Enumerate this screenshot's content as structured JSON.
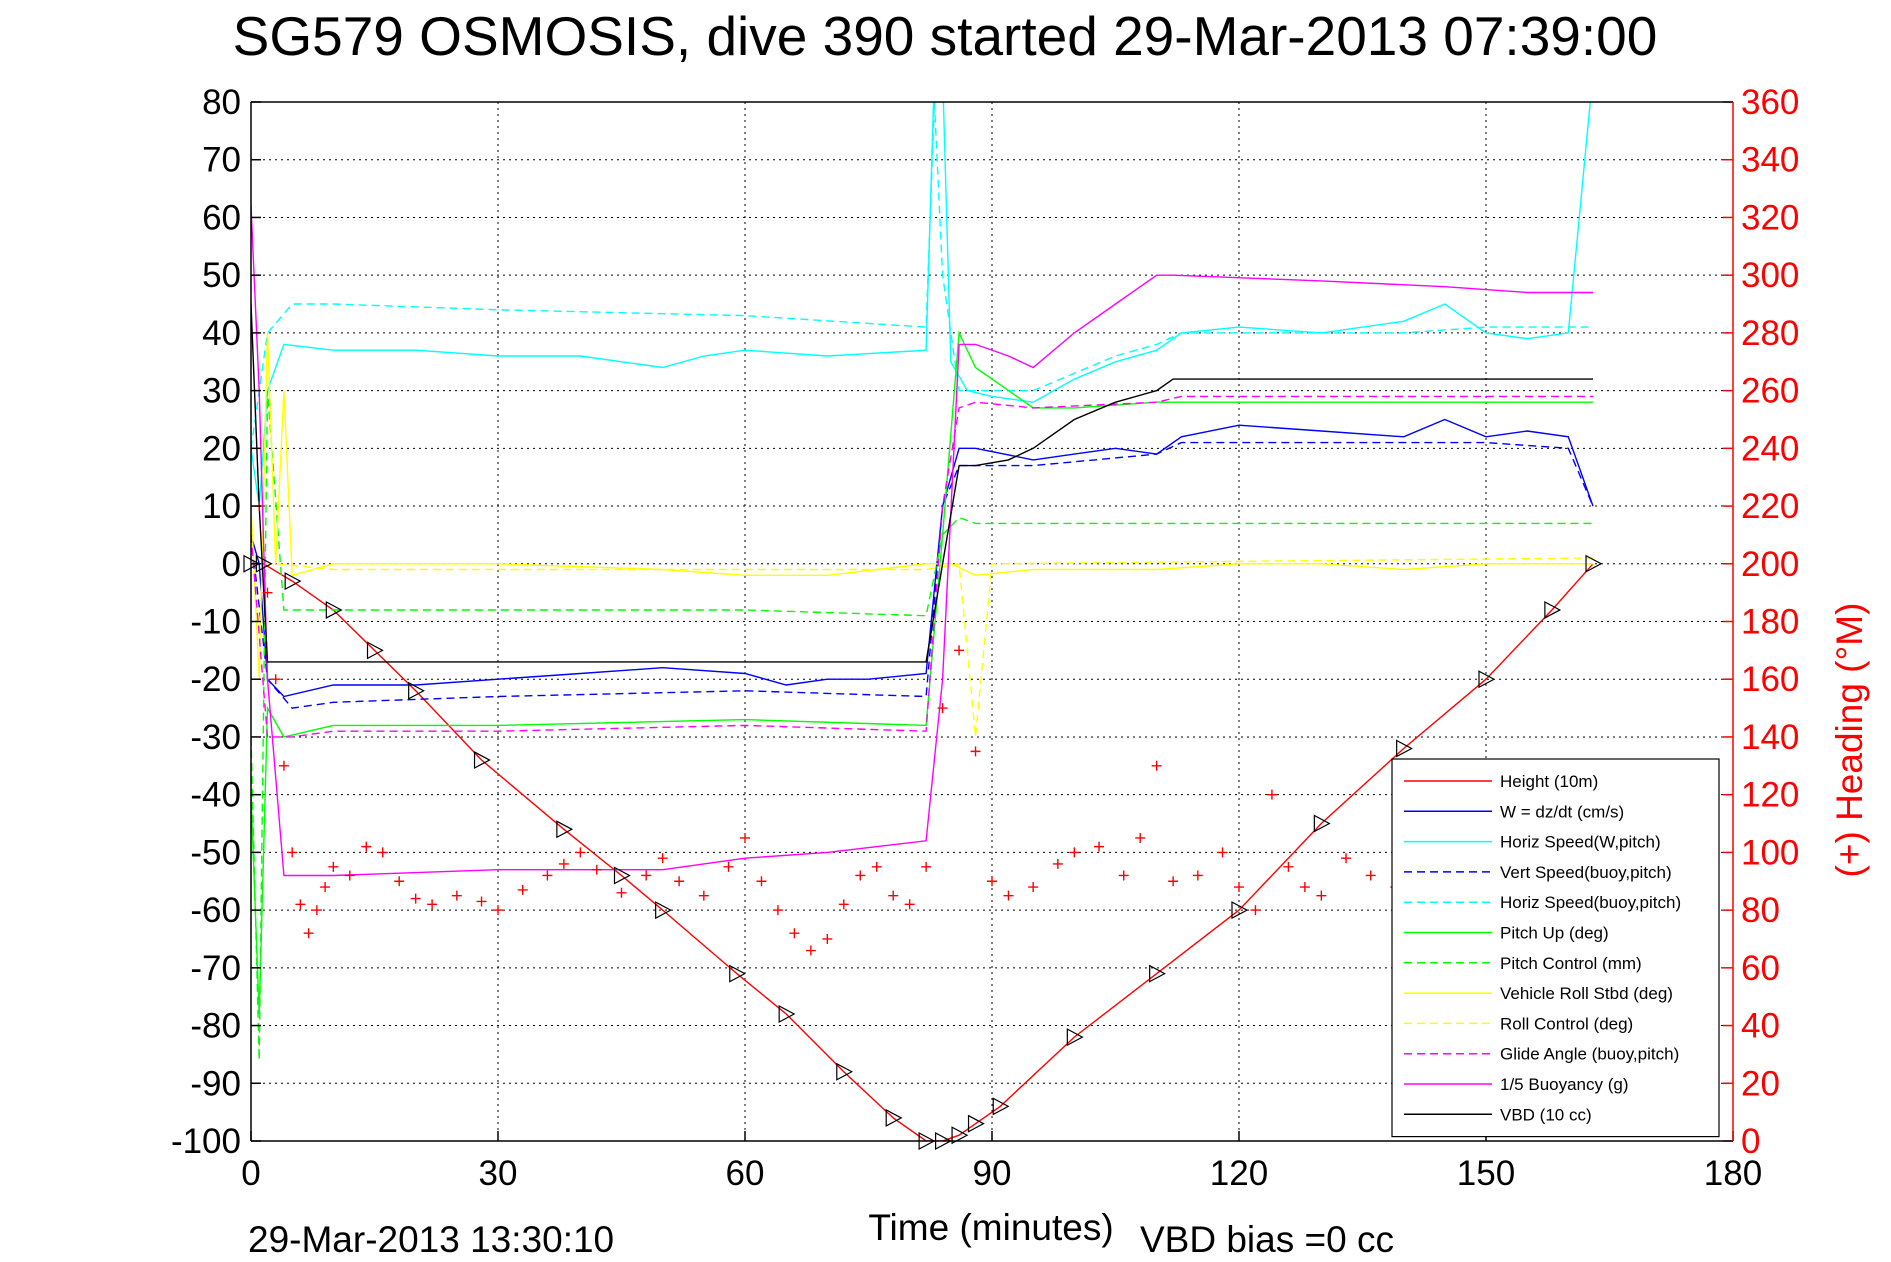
{
  "chart_data": {
    "type": "line",
    "title": "SG579 OSMOSIS, dive 390 started 29-Mar-2013 07:39:00",
    "xlabel": "Time (minutes)",
    "ylabel_right": "(+) Heading (°M)",
    "footer_left": "29-Mar-2013 13:30:10",
    "footer_right": "VBD bias =0 cc",
    "xlim": [
      0,
      180
    ],
    "ylim": [
      -100,
      80
    ],
    "ylim_right": [
      0,
      360
    ],
    "x_ticks": [
      "0",
      "30",
      "60",
      "90",
      "120",
      "150",
      "180"
    ],
    "y_ticks": [
      "80",
      "70",
      "60",
      "50",
      "40",
      "30",
      "20",
      "10",
      "0",
      "-10",
      "-20",
      "-30",
      "-40",
      "-50",
      "-60",
      "-70",
      "-80",
      "-90",
      "-100"
    ],
    "y_right_ticks": [
      "360",
      "340",
      "320",
      "300",
      "280",
      "260",
      "240",
      "220",
      "200",
      "180",
      "160",
      "140",
      "120",
      "100",
      "80",
      "60",
      "40",
      "20",
      "0"
    ],
    "grid": true,
    "legend_position": "bottom-right",
    "colors": {
      "red": "#ff0000",
      "blue": "#0000ff",
      "cyan": "#00ffff",
      "green": "#00ff00",
      "yellow": "#ffff00",
      "magenta": "#ff00ff",
      "black": "#000000"
    },
    "series": [
      {
        "name": "Height (10m)",
        "color": "#ff0000",
        "style": "solid",
        "x": [
          0,
          1.5,
          5,
          10,
          15,
          20,
          28,
          38,
          45,
          50,
          59,
          65,
          72,
          78,
          82,
          84,
          86,
          88,
          91,
          100,
          110,
          120,
          130,
          140,
          150,
          158,
          163
        ],
        "y": [
          0,
          0,
          -3,
          -8,
          -15,
          -22,
          -34,
          -46,
          -54,
          -60,
          -71,
          -78,
          -88,
          -96,
          -100,
          -100,
          -99,
          -97,
          -94,
          -82,
          -71,
          -60,
          -45,
          -32,
          -20,
          -8,
          0
        ]
      },
      {
        "name": "W = dz/dt (cm/s)",
        "color": "#0000ff",
        "style": "solid",
        "x": [
          0,
          1,
          2,
          4,
          10,
          20,
          30,
          40,
          50,
          60,
          65,
          70,
          75,
          82,
          84,
          86,
          88,
          95,
          100,
          105,
          110,
          113,
          120,
          130,
          140,
          145,
          150,
          155,
          160,
          163
        ],
        "y": [
          5,
          0,
          -20,
          -23,
          -21,
          -21,
          -20,
          -19,
          -18,
          -19,
          -21,
          -20,
          -20,
          -19,
          10,
          20,
          20,
          18,
          19,
          20,
          19,
          22,
          24,
          23,
          22,
          25,
          22,
          23,
          22,
          10
        ]
      },
      {
        "name": "Horiz Speed(W,pitch)",
        "color": "#00ffff",
        "style": "solid",
        "x": [
          0,
          1,
          2,
          4,
          10,
          20,
          30,
          40,
          50,
          55,
          60,
          70,
          82,
          83,
          84,
          85,
          87,
          90,
          95,
          100,
          105,
          110,
          113,
          120,
          130,
          140,
          145,
          150,
          155,
          160,
          163
        ],
        "y": [
          20,
          10,
          30,
          38,
          37,
          37,
          36,
          36,
          34,
          36,
          37,
          36,
          37,
          85,
          85,
          35,
          30,
          29,
          28,
          32,
          35,
          37,
          40,
          41,
          40,
          42,
          45,
          40,
          39,
          40,
          85
        ]
      },
      {
        "name": "Vert Speed(buoy,pitch)",
        "color": "#0000ff",
        "style": "dashed",
        "x": [
          0,
          2,
          5,
          10,
          30,
          60,
          82,
          84,
          86,
          90,
          95,
          110,
          113,
          140,
          150,
          160,
          163
        ],
        "y": [
          5,
          -20,
          -25,
          -24,
          -23,
          -22,
          -23,
          10,
          17,
          17,
          17,
          19,
          21,
          21,
          21,
          20,
          10
        ]
      },
      {
        "name": "Horiz Speed(buoy,pitch)",
        "color": "#00ffff",
        "style": "dashed",
        "x": [
          0,
          2,
          5,
          10,
          30,
          60,
          82,
          83,
          84,
          86,
          90,
          95,
          100,
          105,
          110,
          113,
          120,
          140,
          150,
          163
        ],
        "y": [
          20,
          40,
          45,
          45,
          44,
          43,
          41,
          80,
          50,
          30,
          30,
          30,
          33,
          36,
          38,
          40,
          40,
          40,
          41,
          41
        ]
      },
      {
        "name": "Pitch Up (deg)",
        "color": "#00ff00",
        "style": "solid",
        "x": [
          0,
          1,
          2,
          4,
          10,
          30,
          60,
          82,
          84,
          86,
          88,
          95,
          100,
          110,
          120,
          140,
          150,
          163
        ],
        "y": [
          -40,
          -78,
          -25,
          -30,
          -28,
          -28,
          -27,
          -28,
          5,
          40,
          34,
          27,
          27,
          28,
          28,
          28,
          28,
          28
        ]
      },
      {
        "name": "Pitch Control (mm)",
        "color": "#00ff00",
        "style": "dashed",
        "x": [
          0,
          1,
          2,
          4,
          10,
          30,
          60,
          82,
          84,
          86,
          88,
          95,
          163
        ],
        "y": [
          -30,
          -86,
          30,
          -8,
          -8,
          -8,
          -8,
          -9,
          5,
          8,
          7,
          7,
          7
        ]
      },
      {
        "name": "Vehicle Roll Stbd (deg)",
        "color": "#ffff00",
        "style": "solid",
        "x": [
          0,
          1,
          2,
          3,
          4,
          5,
          10,
          30,
          50,
          60,
          70,
          82,
          85,
          88,
          95,
          100,
          110,
          120,
          130,
          140,
          150,
          163
        ],
        "y": [
          10,
          -20,
          40,
          0,
          30,
          -2,
          0,
          0,
          -1,
          -2,
          -2,
          0,
          0,
          -2,
          -1,
          -1,
          -1,
          0,
          0,
          -1,
          0,
          0
        ]
      },
      {
        "name": "Roll Control (deg)",
        "color": "#ffff00",
        "style": "dashed",
        "x": [
          0,
          3,
          10,
          82,
          86,
          88,
          90,
          163
        ],
        "y": [
          0,
          0,
          -1,
          -1,
          0,
          -30,
          0,
          1
        ]
      },
      {
        "name": "Glide Angle (buoy,pitch)",
        "color": "#ff00ff",
        "style": "dashed",
        "x": [
          0,
          2,
          5,
          10,
          30,
          60,
          82,
          84,
          86,
          88,
          95,
          110,
          113,
          163
        ],
        "y": [
          5,
          -30,
          -30,
          -29,
          -29,
          -28,
          -29,
          10,
          27,
          28,
          27,
          28,
          29,
          29
        ]
      },
      {
        "name": "1/5 Buoyancy (g)",
        "color": "#ff00ff",
        "style": "solid",
        "x": [
          0,
          1,
          2,
          4,
          10,
          30,
          50,
          60,
          70,
          82,
          84,
          86,
          88,
          92,
          95,
          100,
          105,
          110,
          112,
          130,
          145,
          155,
          163
        ],
        "y": [
          62,
          30,
          -20,
          -54,
          -54,
          -53,
          -53,
          -51,
          -50,
          -48,
          -20,
          38,
          38,
          36,
          34,
          40,
          45,
          50,
          50,
          49,
          48,
          47,
          47
        ]
      },
      {
        "name": "VBD (10 cc)",
        "color": "#000000",
        "style": "solid",
        "x": [
          0,
          1,
          2,
          4,
          10,
          30,
          60,
          82,
          84,
          86,
          88,
          92,
          95,
          100,
          105,
          110,
          112,
          130,
          150,
          163
        ],
        "y": [
          45,
          10,
          -17,
          -17,
          -17,
          -17,
          -17,
          -17,
          0,
          17,
          17,
          18,
          20,
          25,
          28,
          30,
          32,
          32,
          32,
          32
        ]
      }
    ],
    "heading_markers": {
      "name": "(+) Heading (°M)",
      "color": "#ff0000",
      "marker": "+",
      "x": [
        1,
        2,
        3,
        4,
        5,
        6,
        7,
        8,
        9,
        10,
        12,
        14,
        16,
        18,
        20,
        22,
        25,
        28,
        30,
        33,
        36,
        38,
        40,
        42,
        45,
        48,
        50,
        52,
        55,
        58,
        60,
        62,
        64,
        66,
        68,
        70,
        72,
        74,
        76,
        78,
        80,
        82,
        84,
        86,
        88,
        90,
        92,
        95,
        98,
        100,
        103,
        106,
        108,
        110,
        112,
        115,
        118,
        120,
        122,
        124,
        126,
        128,
        130,
        133,
        136,
        139,
        142,
        145,
        148,
        151,
        154,
        157,
        160,
        163
      ],
      "y": [
        220,
        190,
        160,
        130,
        100,
        82,
        72,
        80,
        88,
        95,
        92,
        102,
        100,
        90,
        84,
        82,
        85,
        83,
        80,
        87,
        92,
        96,
        100,
        94,
        86,
        92,
        98,
        90,
        85,
        95,
        105,
        90,
        80,
        72,
        66,
        70,
        82,
        92,
        95,
        85,
        82,
        95,
        150,
        170,
        135,
        90,
        85,
        88,
        96,
        100,
        102,
        92,
        105,
        130,
        90,
        92,
        100,
        88,
        80,
        120,
        95,
        88,
        85,
        98,
        92,
        88,
        95,
        86,
        90,
        92,
        95,
        90,
        92,
        95
      ]
    }
  }
}
